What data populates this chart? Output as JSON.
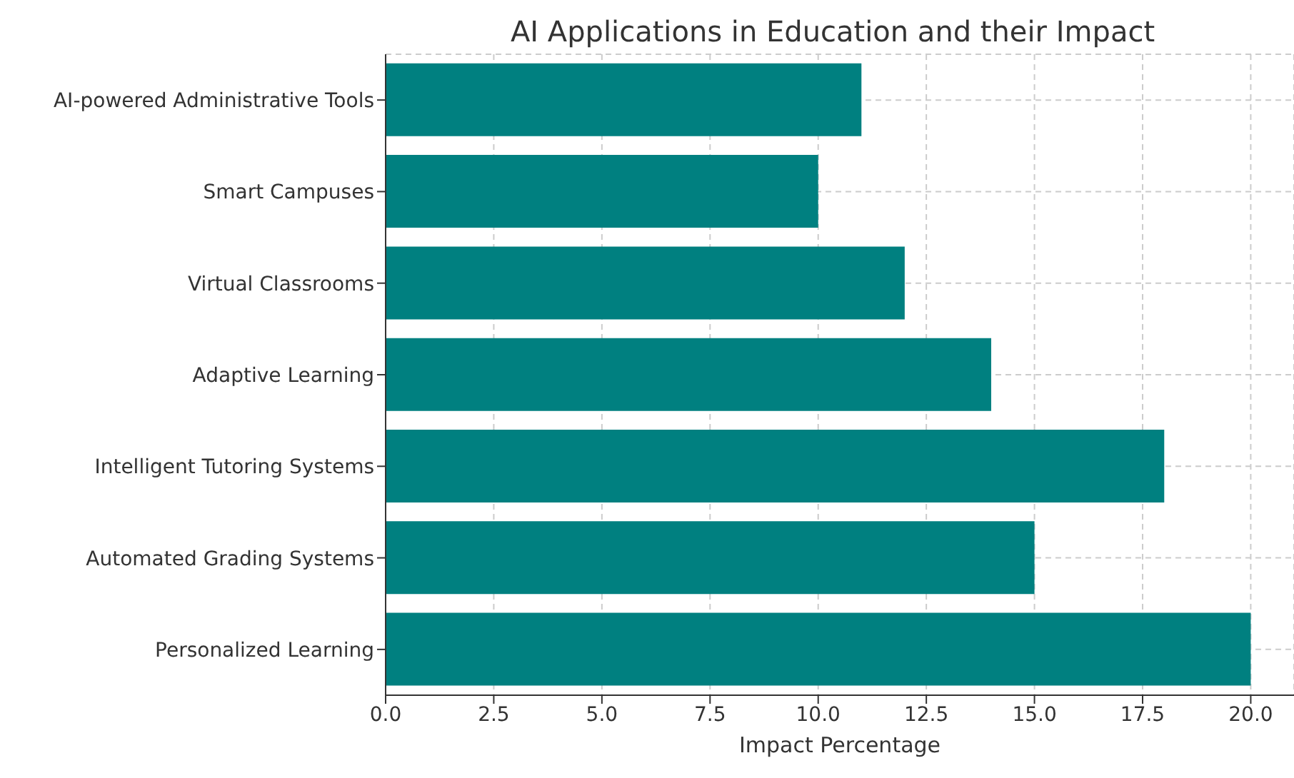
{
  "chart_data": {
    "type": "bar",
    "orientation": "horizontal",
    "title": "AI Applications in Education and their Impact",
    "xlabel": "Impact Percentage",
    "categories": [
      "AI-powered Administrative Tools",
      "Smart Campuses",
      "Virtual Classrooms",
      "Adaptive Learning",
      "Intelligent Tutoring Systems",
      "Automated Grading Systems",
      "Personalized Learning"
    ],
    "values": [
      11,
      10,
      12,
      14,
      18,
      15,
      20
    ],
    "color": "#008080",
    "xlim": [
      0,
      21
    ],
    "xticks": [
      {
        "value": 0,
        "label": "0.0"
      },
      2.5,
      {
        "value": 5,
        "label": "5.0"
      },
      7.5,
      {
        "value": 10,
        "label": "10.0"
      },
      12.5,
      {
        "value": 15,
        "label": "15.0"
      },
      17.5,
      {
        "value": 20,
        "label": "20.0"
      }
    ],
    "grid": true
  }
}
